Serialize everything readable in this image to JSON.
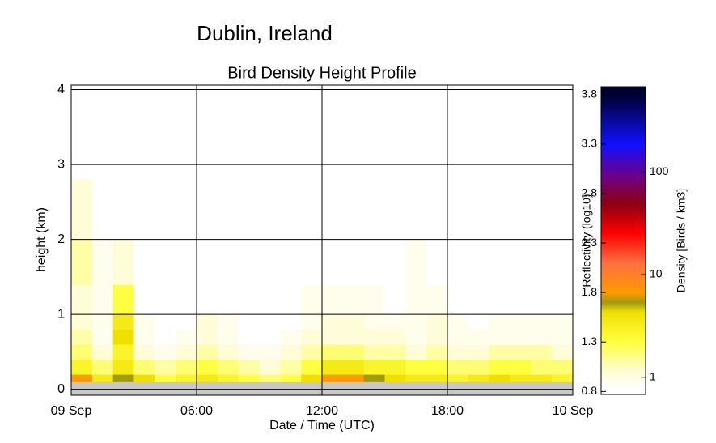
{
  "chart_data": {
    "type": "heatmap",
    "title": "Dublin, Ireland",
    "subtitle": "Bird Density Height Profile",
    "x_label": "Date / Time (UTC)",
    "y_label": "height (km)",
    "colorbar_label": "Reflectivity (log10)",
    "colorbar2_label": "Density [Birds / km3]",
    "xlim": [
      0,
      24
    ],
    "xticks": [
      {
        "value": 0,
        "label": "09 Sep"
      },
      {
        "value": 6,
        "label": "06:00"
      },
      {
        "value": 12,
        "label": "12:00"
      },
      {
        "value": 18,
        "label": "18:00"
      },
      {
        "value": 24,
        "label": "10 Sep"
      }
    ],
    "ylim": [
      -0.08,
      4.06
    ],
    "yticks": [
      0,
      1,
      2,
      3,
      4
    ],
    "grid": true,
    "xbins": [
      0,
      1,
      2,
      3,
      4,
      5,
      6,
      7,
      8,
      9,
      10,
      11,
      12,
      13,
      14,
      15,
      16,
      17,
      18,
      19,
      20,
      21,
      22,
      23,
      24
    ],
    "ybins": [
      -0.08,
      0.1,
      0.2,
      0.4,
      0.6,
      0.8,
      1.0,
      1.4,
      2.0,
      2.8
    ],
    "z": [
      [
        null,
        null,
        null,
        null,
        null,
        null,
        null,
        null,
        null,
        null,
        null,
        null,
        null,
        null,
        null,
        null,
        null,
        null,
        null,
        null,
        null,
        null,
        null,
        null
      ],
      [
        1.8,
        1.5,
        1.7,
        1.6,
        1.3,
        1.4,
        1.5,
        1.4,
        1.3,
        1.2,
        1.3,
        1.6,
        1.8,
        1.8,
        1.7,
        1.6,
        1.5,
        1.5,
        1.4,
        1.5,
        1.6,
        1.5,
        1.5,
        1.4
      ],
      [
        1.4,
        1.2,
        1.5,
        1.2,
        1.1,
        1.2,
        1.3,
        1.2,
        1.1,
        1.0,
        1.1,
        1.3,
        1.5,
        1.5,
        1.4,
        1.4,
        1.3,
        1.3,
        1.2,
        1.2,
        1.3,
        1.3,
        1.2,
        1.2
      ],
      [
        1.2,
        1.0,
        1.4,
        1.0,
        0.9,
        1.0,
        1.1,
        1.0,
        0.9,
        0.9,
        1.0,
        1.1,
        1.2,
        1.2,
        1.1,
        1.1,
        1.0,
        1.1,
        1.0,
        1.0,
        1.1,
        1.1,
        1.1,
        1.0
      ],
      [
        1.1,
        0.9,
        1.6,
        0.9,
        0.8,
        0.9,
        1.0,
        0.9,
        0.8,
        0.8,
        0.9,
        1.0,
        1.0,
        1.0,
        1.0,
        1.0,
        0.9,
        1.0,
        0.9,
        0.9,
        0.9,
        0.9,
        0.9,
        0.9
      ],
      [
        1.0,
        0.9,
        1.5,
        0.9,
        0.8,
        0.8,
        1.0,
        0.9,
        0.8,
        0.8,
        0.8,
        0.9,
        1.0,
        1.0,
        0.9,
        0.9,
        0.9,
        1.0,
        0.9,
        0.8,
        0.9,
        0.9,
        0.9,
        0.9
      ],
      [
        1.0,
        0.9,
        1.3,
        0.8,
        0.8,
        0.8,
        0.8,
        0.8,
        0.8,
        0.8,
        0.8,
        0.9,
        0.9,
        0.9,
        0.9,
        0.8,
        0.9,
        0.9,
        0.8,
        0.8,
        0.8,
        0.8,
        0.8,
        0.8
      ],
      [
        1.1,
        0.9,
        1.0,
        0.8,
        0.8,
        0.8,
        0.8,
        0.8,
        0.8,
        0.8,
        0.8,
        0.8,
        0.8,
        0.8,
        0.8,
        0.8,
        0.9,
        0.8,
        0.8,
        0.8,
        0.8,
        0.8,
        0.8,
        0.8
      ],
      [
        1.0,
        0.8,
        0.8,
        0.8,
        0.8,
        0.8,
        0.8,
        0.8,
        0.8,
        0.8,
        0.8,
        0.8,
        0.8,
        0.8,
        0.8,
        0.8,
        0.8,
        0.8,
        0.8,
        0.8,
        0.8,
        0.8,
        0.8,
        0.8
      ]
    ],
    "missing_color": "#c8c8c8",
    "colorscale": [
      [
        0.8,
        "#ffffff"
      ],
      [
        1.0,
        "#fffcd8"
      ],
      [
        1.3,
        "#ffff40"
      ],
      [
        1.6,
        "#f0e000"
      ],
      [
        1.7,
        "#a09a10"
      ],
      [
        1.8,
        "#ff9a00"
      ],
      [
        2.1,
        "#ff7040"
      ],
      [
        2.4,
        "#ff0000"
      ],
      [
        2.7,
        "#8b0010"
      ],
      [
        3.0,
        "#6a0090"
      ],
      [
        3.3,
        "#1010ff"
      ],
      [
        3.8,
        "#000030"
      ]
    ],
    "clim": [
      0.77,
      3.88
    ],
    "cticks": [
      0.8,
      1.3,
      1.8,
      2.3,
      2.8,
      3.3,
      3.8
    ],
    "density_lim": [
      0.68,
      676
    ],
    "density_log": true,
    "density_ticks": [
      1,
      10,
      100
    ]
  }
}
